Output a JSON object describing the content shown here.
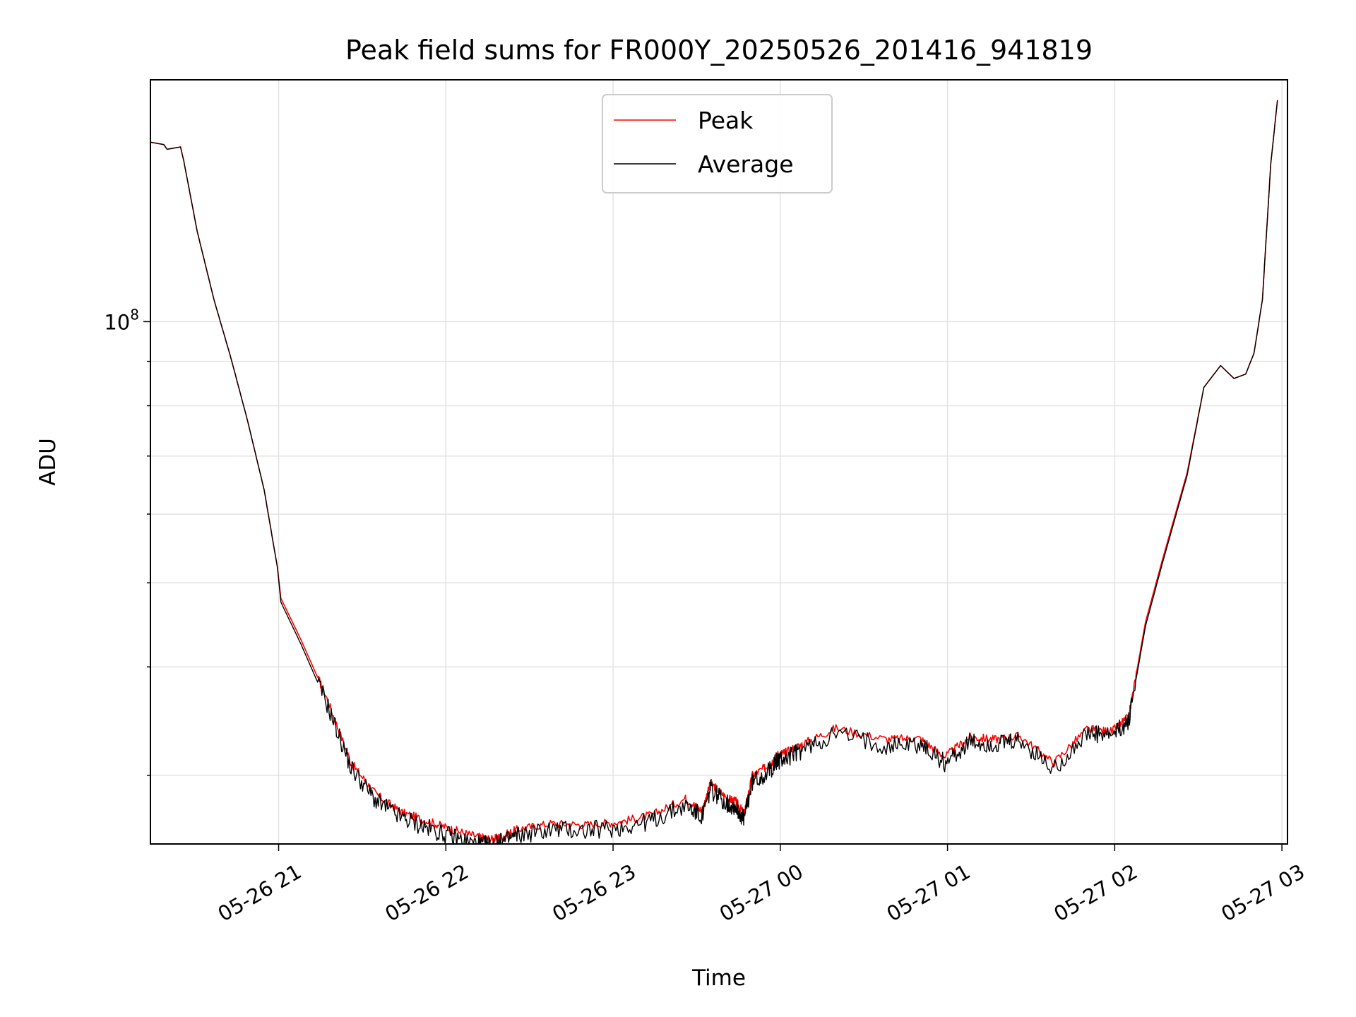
{
  "chart_data": {
    "type": "line",
    "title": "Peak field sums for FR000Y_20250526_201416_941819",
    "xlabel": "Time",
    "ylabel": "ADU",
    "x_tick_labels": [
      "05-26 21",
      "05-26 22",
      "05-26 23",
      "05-27 00",
      "05-27 01",
      "05-27 02",
      "05-27 03"
    ],
    "x_ticks_hours": [
      0.7667,
      1.7667,
      2.7667,
      3.7667,
      4.7667,
      5.7667,
      6.7667
    ],
    "xlim_hours": [
      0,
      6.8
    ],
    "x_origin": "2025-05-26 20:14:16",
    "y_scale": "log",
    "ylim": [
      25000000,
      190000000
    ],
    "y_tick_labels": [
      {
        "value": 100000000,
        "base": "10",
        "exp": "8"
      }
    ],
    "grid": true,
    "legend": {
      "position": "top-center",
      "entries": [
        "Peak",
        "Average"
      ]
    },
    "series": [
      {
        "name": "Peak",
        "color": "#ff0000",
        "x": [
          0.0,
          0.08,
          0.1,
          0.18,
          0.2,
          0.28,
          0.38,
          0.48,
          0.58,
          0.68,
          0.76,
          0.78,
          0.9,
          1.05,
          1.2,
          1.35,
          1.5,
          1.65,
          1.8,
          1.95,
          2.05,
          2.1,
          2.2,
          2.4,
          2.6,
          2.8,
          3.0,
          3.2,
          3.3,
          3.35,
          3.45,
          3.5,
          3.55,
          3.6,
          3.7,
          3.75,
          3.8,
          3.9,
          4.1,
          4.4,
          4.6,
          4.75,
          4.9,
          5.05,
          5.2,
          5.4,
          5.6,
          5.75,
          5.85,
          5.95,
          6.05,
          6.2,
          6.3,
          6.4,
          6.48,
          6.55,
          6.6,
          6.65,
          6.7,
          6.74
        ],
        "y": [
          161000000,
          160000000,
          158000000,
          159000000,
          153000000,
          127000000,
          106000000,
          91000000,
          77000000,
          64000000,
          52000000,
          48000000,
          43000000,
          37000000,
          31000000,
          28500000,
          27200000,
          26600000,
          26000000,
          25500000,
          25300000,
          25500000,
          26000000,
          26400000,
          26300000,
          26500000,
          27000000,
          28200000,
          27300000,
          29400000,
          28200000,
          28000000,
          27100000,
          30000000,
          30800000,
          31700000,
          31900000,
          32600000,
          34000000,
          33000000,
          33100000,
          31500000,
          33200000,
          33000000,
          33300000,
          31000000,
          33900000,
          33700000,
          35000000,
          45000000,
          53000000,
          67000000,
          84000000,
          89000000,
          86000000,
          87000000,
          92000000,
          106000000,
          152000000,
          180000000
        ]
      },
      {
        "name": "Average",
        "color": "#000000",
        "x": [
          0.0,
          0.08,
          0.1,
          0.18,
          0.2,
          0.28,
          0.38,
          0.48,
          0.58,
          0.68,
          0.76,
          0.78,
          0.9,
          1.05,
          1.2,
          1.35,
          1.5,
          1.65,
          1.8,
          1.95,
          2.05,
          2.1,
          2.2,
          2.4,
          2.6,
          2.8,
          3.0,
          3.2,
          3.3,
          3.35,
          3.45,
          3.5,
          3.55,
          3.6,
          3.7,
          3.75,
          3.8,
          3.9,
          4.1,
          4.4,
          4.6,
          4.75,
          4.9,
          5.05,
          5.2,
          5.4,
          5.6,
          5.75,
          5.85,
          5.95,
          6.05,
          6.2,
          6.3,
          6.4,
          6.48,
          6.55,
          6.6,
          6.65,
          6.7,
          6.74
        ],
        "y": [
          161000000,
          160000000,
          158000000,
          159000000,
          153000000,
          127000000,
          106000000,
          91000000,
          77000000,
          64000000,
          52000000,
          47500000,
          42500000,
          36500000,
          30600000,
          28000000,
          26800000,
          26100000,
          25500000,
          25000000,
          24900000,
          25100000,
          25600000,
          26000000,
          25900000,
          26100000,
          26600000,
          27700000,
          26900000,
          28900000,
          27800000,
          27600000,
          26700000,
          29500000,
          30300000,
          31200000,
          31400000,
          32100000,
          33500000,
          32500000,
          32600000,
          31000000,
          32700000,
          32500000,
          32800000,
          30500000,
          33400000,
          33300000,
          34600000,
          44500000,
          52500000,
          66500000,
          84000000,
          89000000,
          86000000,
          87000000,
          92000000,
          106000000,
          152000000,
          180000000
        ]
      }
    ]
  }
}
